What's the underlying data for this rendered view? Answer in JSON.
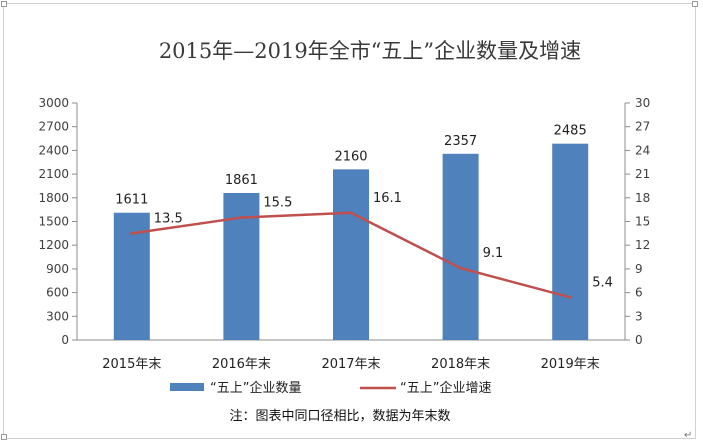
{
  "chart_data": {
    "type": "bar",
    "title": "2015年—2019年全市“五上”企业数量及增速",
    "categories": [
      "2015年末",
      "2016年末",
      "2017年末",
      "2018年末",
      "2019年末"
    ],
    "series": [
      {
        "name": "“五上”企业数量",
        "type": "bar",
        "axis": "left",
        "color": "#4f81bd",
        "values": [
          1611,
          1861,
          2160,
          2357,
          2485
        ]
      },
      {
        "name": "“五上”企业增速",
        "type": "line",
        "axis": "right",
        "color": "#c0504d",
        "values": [
          13.5,
          15.5,
          16.1,
          9.1,
          5.4
        ]
      }
    ],
    "ylim": [
      0,
      3000
    ],
    "yticks": [
      0,
      300,
      600,
      900,
      1200,
      1500,
      1800,
      2100,
      2400,
      2700,
      3000
    ],
    "y2lim": [
      0,
      30
    ],
    "y2ticks": [
      0,
      3,
      6,
      9,
      12,
      15,
      18,
      21,
      24,
      27,
      30
    ],
    "legend_position": "bottom",
    "note": "注：图表中同口径相比，数据为年末数"
  }
}
